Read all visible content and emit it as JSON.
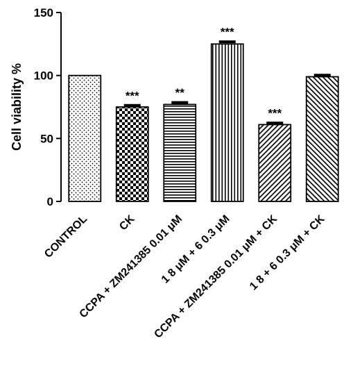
{
  "chart_data": {
    "type": "bar",
    "title": "",
    "xlabel": "",
    "ylabel": "Cell viability %",
    "ylim": [
      0,
      150
    ],
    "yticks": [
      0,
      50,
      100,
      150
    ],
    "categories": [
      "CONTROL",
      "CK",
      "CCPA + ZM241385 0.01 μM",
      "1 8 μM + 6 0.3 μM",
      "CCPA + ZM241385 0.01 μM + CK",
      "1 8 + 6 0.3 μM + CK"
    ],
    "values": [
      100,
      75,
      77,
      125,
      61,
      99
    ],
    "errors": [
      0,
      1.5,
      1.8,
      2.0,
      1.5,
      1.5
    ],
    "annotations": [
      "",
      "***",
      "**",
      "***",
      "***",
      ""
    ],
    "patterns": [
      "dots",
      "checker",
      "horizontal",
      "vertical",
      "diagonal-right",
      "diagonal-left"
    ],
    "colors": {
      "bar_fill": "#ffffff",
      "ink": "#000000"
    },
    "grid": false,
    "legend": "none"
  }
}
